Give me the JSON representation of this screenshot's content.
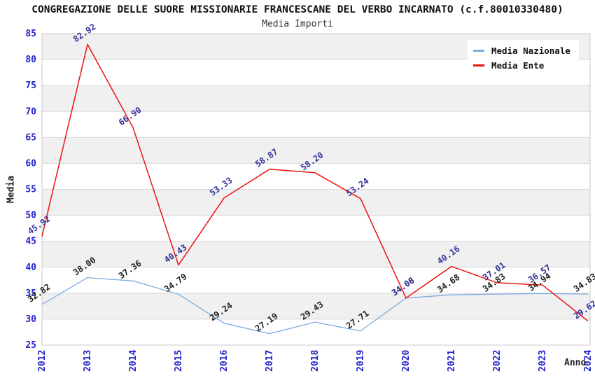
{
  "chart_data": {
    "type": "line",
    "title": "CONGREGAZIONE DELLE SUORE MISSIONARIE FRANCESCANE DEL VERBO INCARNATO (c.f.80010330480)",
    "subtitle": "Media Importi",
    "xlabel": "Anno",
    "ylabel": "Media",
    "ylim": [
      25,
      85
    ],
    "ytick_step": 5,
    "grid": true,
    "legend_position": "top-right",
    "categories": [
      "2012",
      "2013",
      "2014",
      "2015",
      "2016",
      "2017",
      "2018",
      "2019",
      "2020",
      "2021",
      "2022",
      "2023",
      "2024"
    ],
    "series": [
      {
        "name": "Media Nazionale",
        "color": "#7bacdf",
        "label_color": "#222222",
        "values": [
          32.82,
          38.0,
          37.36,
          34.79,
          29.24,
          27.19,
          29.43,
          27.71,
          34.06,
          34.68,
          34.83,
          34.94,
          34.83
        ]
      },
      {
        "name": "Media Ente",
        "color": "#ee1111",
        "label_color": "#333399",
        "values": [
          45.92,
          82.92,
          66.9,
          40.43,
          53.33,
          58.87,
          58.2,
          53.24,
          34.08,
          40.16,
          37.01,
          36.57,
          29.62
        ]
      }
    ],
    "style": {
      "tick_label_color": "#2222cc",
      "band_colors": [
        "#ffffff",
        "#f0f0f0"
      ],
      "grid_color": "#d9d9d9",
      "plot_border_color": "#c8c8c8"
    }
  }
}
